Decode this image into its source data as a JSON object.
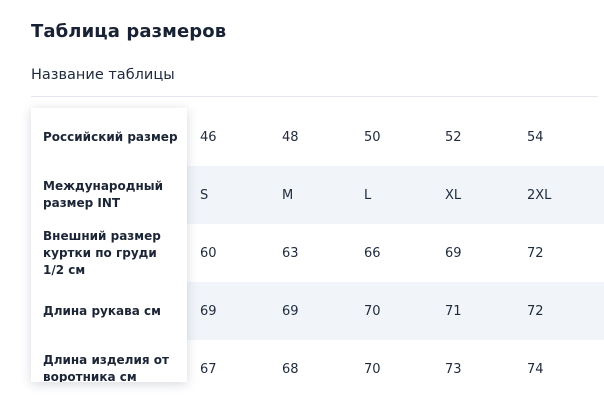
{
  "page_title": "Таблица размеров",
  "table_name": "Название таблицы",
  "rows": [
    {
      "label": "Российский размер",
      "values": [
        "46",
        "48",
        "50",
        "52",
        "54"
      ]
    },
    {
      "label": "Международный размер INT",
      "values": [
        "S",
        "M",
        "L",
        "XL",
        "2XL"
      ]
    },
    {
      "label": "Внешний размер куртки по груди 1/2 см",
      "values": [
        "60",
        "63",
        "66",
        "69",
        "72"
      ]
    },
    {
      "label": "Длина рукава см",
      "values": [
        "69",
        "69",
        "70",
        "71",
        "72"
      ]
    },
    {
      "label": "Длина изделия от воротника см",
      "values": [
        "67",
        "68",
        "70",
        "73",
        "74"
      ]
    }
  ],
  "colors": {
    "row_shade": "#f1f5fa",
    "text": "#1c2536",
    "divider": "#e3e6ec"
  }
}
